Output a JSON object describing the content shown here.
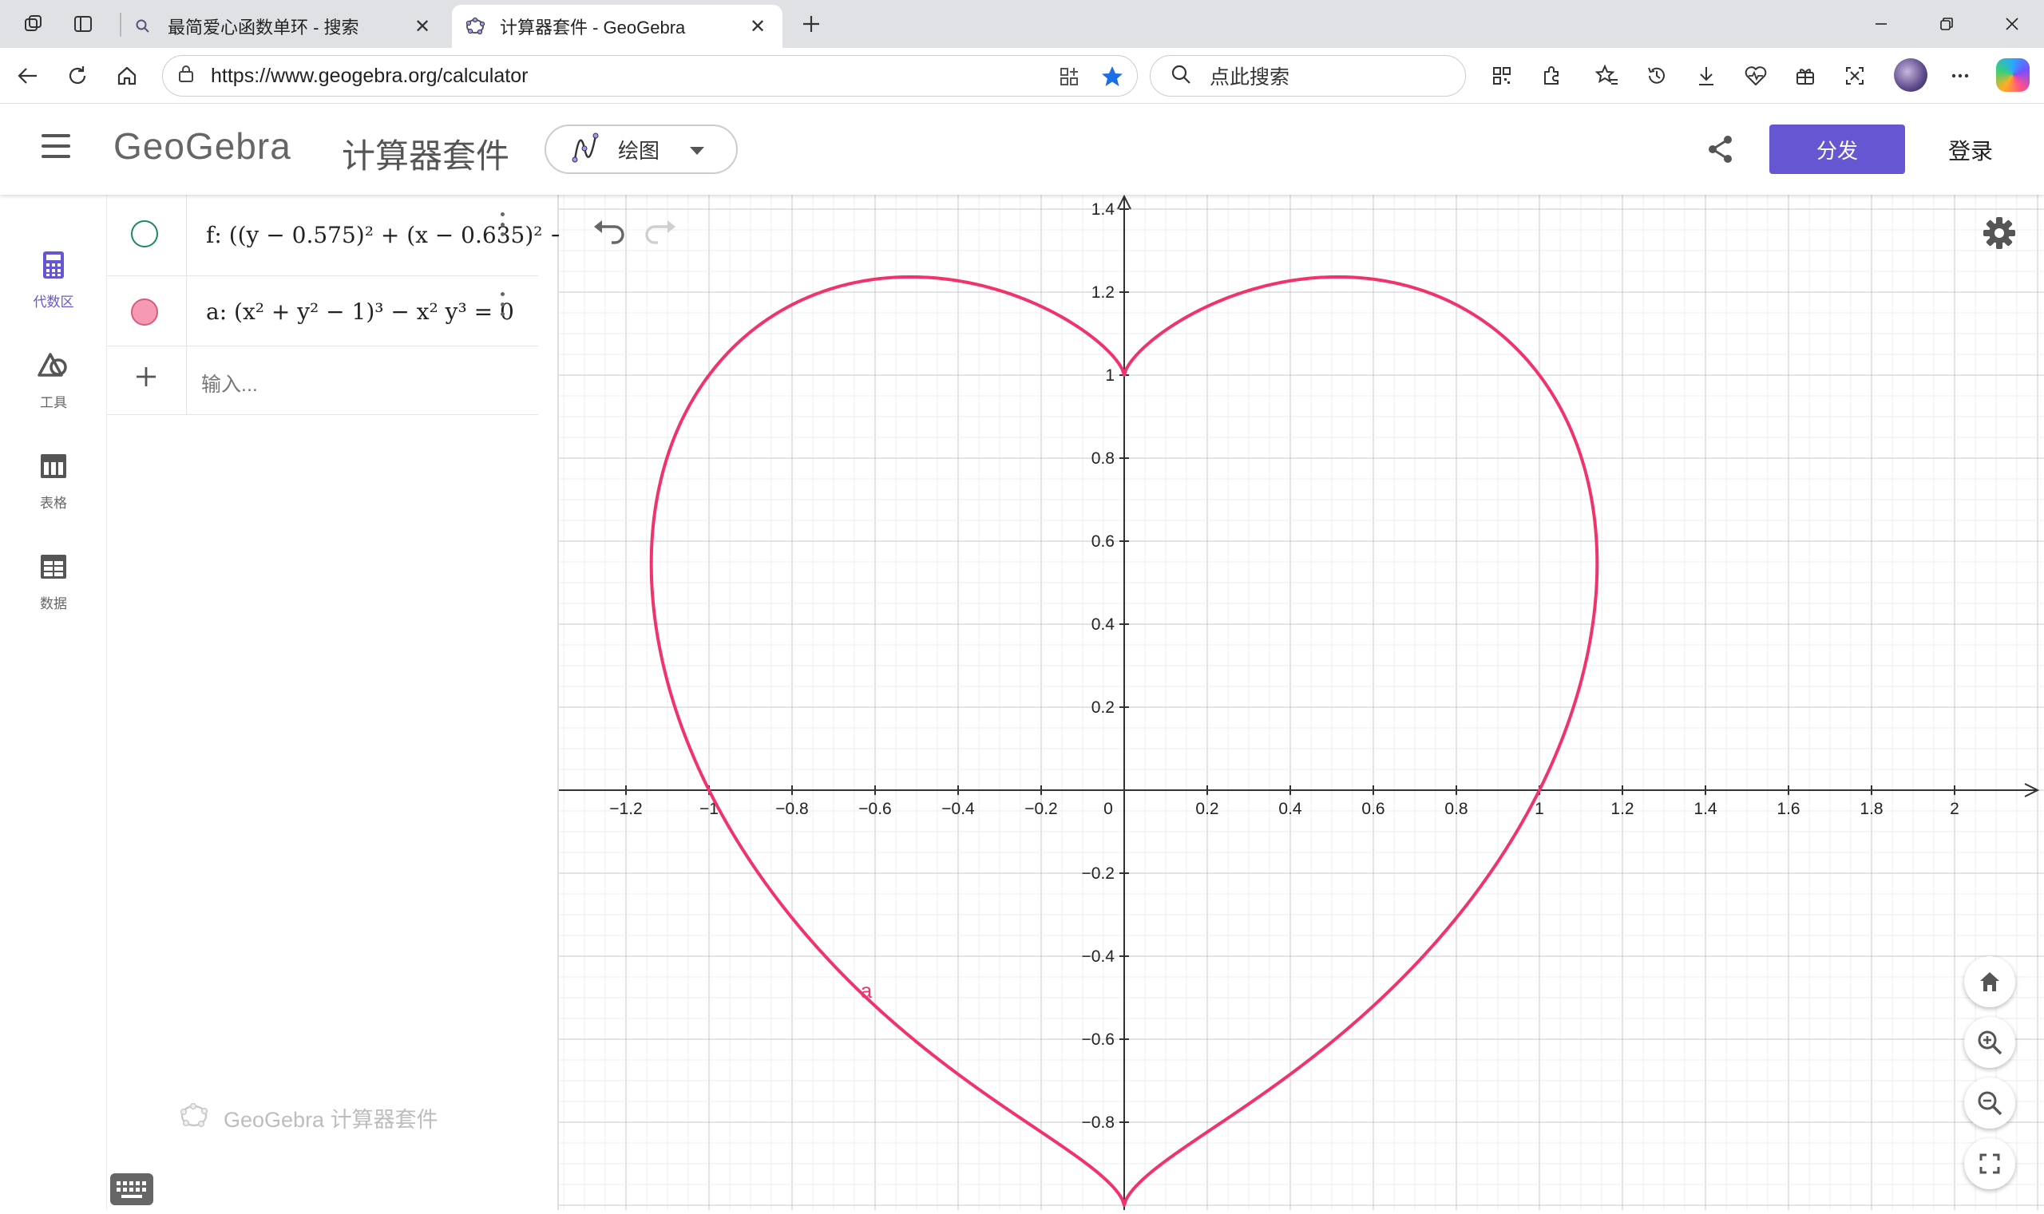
{
  "browser": {
    "tabs": [
      {
        "title": "最简爱心函数单环 - 搜索",
        "active": false
      },
      {
        "title": "计算器套件 - GeoGebra",
        "active": true
      }
    ],
    "url": "https://www.geogebra.org/calculator",
    "search_placeholder": "点此搜索"
  },
  "header": {
    "logo": "GeoGebra",
    "app_title": "计算器套件",
    "mode_label": "绘图",
    "share_button": "分发",
    "login": "登录"
  },
  "sidebar": {
    "items": [
      {
        "label": "代数区",
        "icon": "calculator-icon",
        "active": true
      },
      {
        "label": "工具",
        "icon": "tools-icon",
        "active": false
      },
      {
        "label": "表格",
        "icon": "table-icon",
        "active": false
      },
      {
        "label": "数据",
        "icon": "data-icon",
        "active": false
      }
    ]
  },
  "algebra": {
    "rows": [
      {
        "name": "f",
        "expression_text": "f: ((y − 0.575)² + (x − 0.635)² −",
        "visible": false,
        "color": "#1b8a5a"
      },
      {
        "name": "a",
        "expression_text": "a: (x² + y² − 1)³ − x² y³ = 0",
        "visible": true,
        "color": "#e9718f"
      }
    ],
    "input_placeholder": "输入...",
    "brand_text": "GeoGebra 计算器套件"
  },
  "graph": {
    "curve_color": "#f0346b",
    "curve_label": "a",
    "x_ticks": [
      "−1.2",
      "−1",
      "−0.8",
      "−0.6",
      "−0.4",
      "−0.2",
      "0",
      "0.2",
      "0.4",
      "0.6",
      "0.8",
      "1",
      "1.2",
      "1.4",
      "1.6",
      "1.8",
      "2"
    ],
    "y_ticks": [
      "1.4",
      "1.2",
      "1",
      "0.8",
      "0.6",
      "0.4",
      "0.2",
      "−0.2",
      "−0.4",
      "−0.6",
      "−0.8"
    ],
    "x_range": [
      -1.35,
      2.2
    ],
    "y_range": [
      -1.0,
      1.45
    ],
    "grid": true
  }
}
